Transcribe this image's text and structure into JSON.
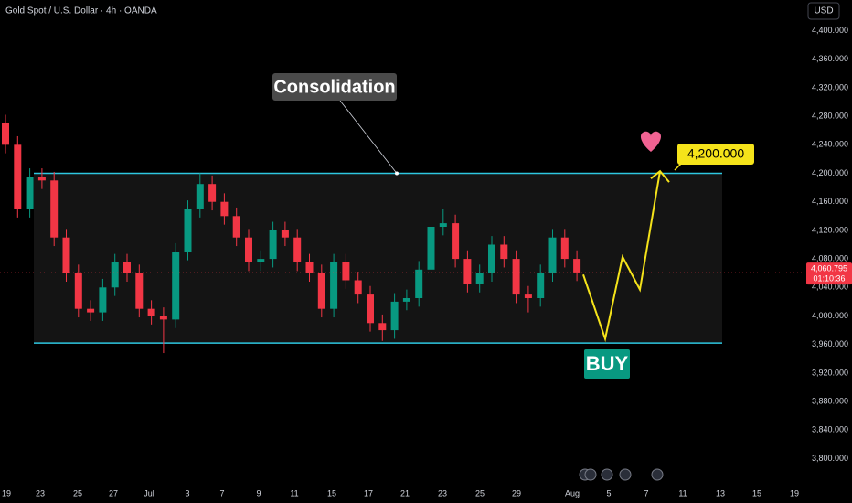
{
  "chart_data": {
    "type": "candlestick",
    "title": "Gold Spot / U.S. Dollar · 4h · OANDA",
    "currency": "USD",
    "ylim": [
      3757,
      4443
    ],
    "yticks": [
      {
        "value": 3800,
        "label": "3,800.000"
      },
      {
        "value": 3840,
        "label": "3,840.000"
      },
      {
        "value": 3880,
        "label": "3,880.000"
      },
      {
        "value": 3920,
        "label": "3,920.000"
      },
      {
        "value": 3960,
        "label": "3,960.000"
      },
      {
        "value": 4000,
        "label": "4,000.000"
      },
      {
        "value": 4040,
        "label": "4,040.000"
      },
      {
        "value": 4080,
        "label": "4,080.000"
      },
      {
        "value": 4120,
        "label": "4,120.000"
      },
      {
        "value": 4160,
        "label": "4,160.000"
      },
      {
        "value": 4200,
        "label": "4,200.000"
      },
      {
        "value": 4240,
        "label": "4,240.000"
      },
      {
        "value": 4280,
        "label": "4,280.000"
      },
      {
        "value": 4320,
        "label": "4,320.000"
      },
      {
        "value": 4360,
        "label": "4,360.000"
      },
      {
        "value": 4400,
        "label": "4,400.000"
      }
    ],
    "x_labels": [
      "19",
      "23",
      "25",
      "27",
      "Jul",
      "3",
      "7",
      "9",
      "11",
      "15",
      "17",
      "21",
      "23",
      "25",
      "29",
      "Aug",
      "5",
      "7",
      "11",
      "13",
      "15",
      "19"
    ],
    "up_color": "#089981",
    "down_color": "#f23645",
    "open": [
      4270,
      4240,
      4150,
      4195,
      4190,
      4110,
      4060,
      4010,
      4005,
      4040,
      4075,
      4060,
      4010,
      4000,
      3995,
      4090,
      4150,
      4185,
      4160,
      4140,
      4110,
      4075,
      4080,
      4120,
      4110,
      4075,
      4060,
      4010,
      4075,
      4050,
      4030,
      3990,
      3980,
      4020,
      4025,
      4065,
      4125,
      4130,
      4080,
      4045,
      4060,
      4100,
      4080,
      4030,
      4025,
      4060,
      4110,
      4080
    ],
    "high": [
      4282,
      4252,
      4207,
      4207,
      4202,
      4122,
      4072,
      4022,
      4052,
      4087,
      4087,
      4072,
      4022,
      4012,
      4102,
      4162,
      4200,
      4197,
      4172,
      4152,
      4122,
      4092,
      4132,
      4132,
      4122,
      4087,
      4072,
      4087,
      4087,
      4062,
      4042,
      4002,
      4032,
      4037,
      4077,
      4137,
      4150,
      4142,
      4092,
      4072,
      4112,
      4112,
      4092,
      4042,
      4072,
      4122,
      4122,
      4092
    ],
    "low": [
      4228,
      4138,
      4138,
      4178,
      4098,
      4048,
      3998,
      3993,
      3993,
      4028,
      4048,
      3998,
      3988,
      3948,
      3983,
      4078,
      4138,
      4148,
      4128,
      4098,
      4063,
      4063,
      4068,
      4098,
      4063,
      4048,
      3998,
      3998,
      4038,
      4018,
      3978,
      3965,
      3968,
      4008,
      4013,
      4053,
      4113,
      4068,
      4033,
      4033,
      4048,
      4068,
      4018,
      4005,
      4013,
      4048,
      4068,
      4049
    ],
    "close": [
      4240,
      4150,
      4195,
      4190,
      4110,
      4060,
      4010,
      4005,
      4040,
      4075,
      4060,
      4010,
      4000,
      3995,
      4090,
      4150,
      4185,
      4160,
      4140,
      4110,
      4075,
      4080,
      4120,
      4110,
      4075,
      4060,
      4010,
      4075,
      4050,
      4030,
      3990,
      3980,
      4020,
      4025,
      4065,
      4125,
      4130,
      4080,
      4045,
      4060,
      4100,
      4080,
      4030,
      4025,
      4060,
      4110,
      4080,
      4061
    ],
    "last_price": {
      "value": 4060.795,
      "label": "4,060.795"
    },
    "countdown": "01:10:36",
    "channel": {
      "top": 4200,
      "bottom": 3962,
      "color": "#2ec7e0"
    },
    "projection": {
      "values": [
        4058,
        3968,
        4083,
        4037,
        4203
      ],
      "color": "#f5e31a"
    },
    "annotations": {
      "consolidation": "Consolidation",
      "target": "4,200.000",
      "buy": "BUY"
    }
  }
}
